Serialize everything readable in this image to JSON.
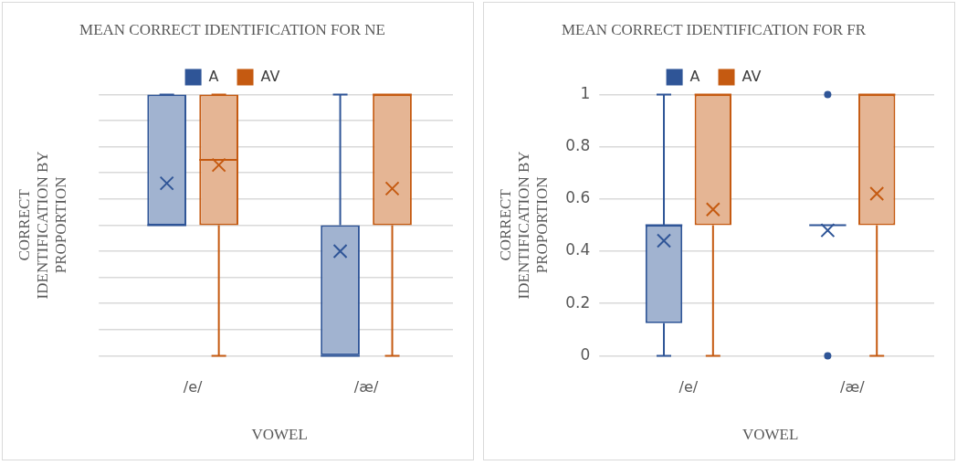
{
  "chart_data": [
    {
      "type": "box",
      "title": "MEAN CORRECT IDENTIFICATION FOR NE",
      "xlabel": "VOWEL",
      "ylabel": "CORRECT IDENTIFICATION BY PROPORTION",
      "categories": [
        "/e/",
        "/æ/"
      ],
      "ylim": [
        0,
        1
      ],
      "yticks": [
        {
          "value": 0,
          "label": null
        },
        {
          "value": 0.1,
          "label": null
        },
        {
          "value": 0.2,
          "label": null
        },
        {
          "value": 0.3,
          "label": null
        },
        {
          "value": 0.4,
          "label": null
        },
        {
          "value": 0.5,
          "label": null
        },
        {
          "value": 0.6,
          "label": null
        },
        {
          "value": 0.7,
          "label": null
        },
        {
          "value": 0.8,
          "label": null
        },
        {
          "value": 0.9,
          "label": null
        },
        {
          "value": 1,
          "label": null
        }
      ],
      "tick_labels": "x",
      "grid": "y",
      "legend": "top",
      "series": [
        {
          "name": "A",
          "color": "#2f5597",
          "boxes": [
            {
              "low": 0.5,
              "q1": 0.5,
              "median": 0.5,
              "q3": 1,
              "high": 1,
              "mean": 0.66
            },
            {
              "low": 0,
              "q1": 0,
              "median": 0,
              "q3": 0.5,
              "high": 1,
              "mean": 0.4
            }
          ]
        },
        {
          "name": "AV",
          "color": "#c55a11",
          "boxes": [
            {
              "low": 0,
              "q1": 0.5,
              "median": 0.75,
              "q3": 1,
              "high": 1,
              "mean": 0.73
            },
            {
              "low": 0,
              "q1": 0.5,
              "median": 1,
              "q3": 1,
              "high": 1,
              "mean": 0.64
            }
          ]
        }
      ]
    },
    {
      "type": "box",
      "title": "MEAN CORRECT IDENTIFICATION FOR FR",
      "xlabel": "VOWEL",
      "ylabel": "CORRECT IDENTIFICATION BY PROPORTION",
      "categories": [
        "/e/",
        "/æ/"
      ],
      "ylim": [
        0,
        1
      ],
      "yticks": [
        0,
        0.2,
        0.4,
        0.6,
        0.8,
        1
      ],
      "grid": "y",
      "legend": "top",
      "series": [
        {
          "name": "A",
          "color": "#2f5597",
          "boxes": [
            {
              "low": 0,
              "q1": 0.125,
              "median": 0.5,
              "q3": 0.5,
              "high": 1,
              "mean": 0.44
            },
            {
              "low": 0.5,
              "q1": 0.5,
              "median": 0.5,
              "q3": 0.5,
              "high": 0.5,
              "mean": 0.48,
              "outliers": [
                1,
                0
              ]
            }
          ]
        },
        {
          "name": "AV",
          "color": "#c55a11",
          "boxes": [
            {
              "low": 0,
              "q1": 0.5,
              "median": 1,
              "q3": 1,
              "high": 1,
              "mean": 0.56
            },
            {
              "low": 0,
              "q1": 0.5,
              "median": 1,
              "q3": 1,
              "high": 1,
              "mean": 0.62
            }
          ]
        }
      ]
    }
  ]
}
